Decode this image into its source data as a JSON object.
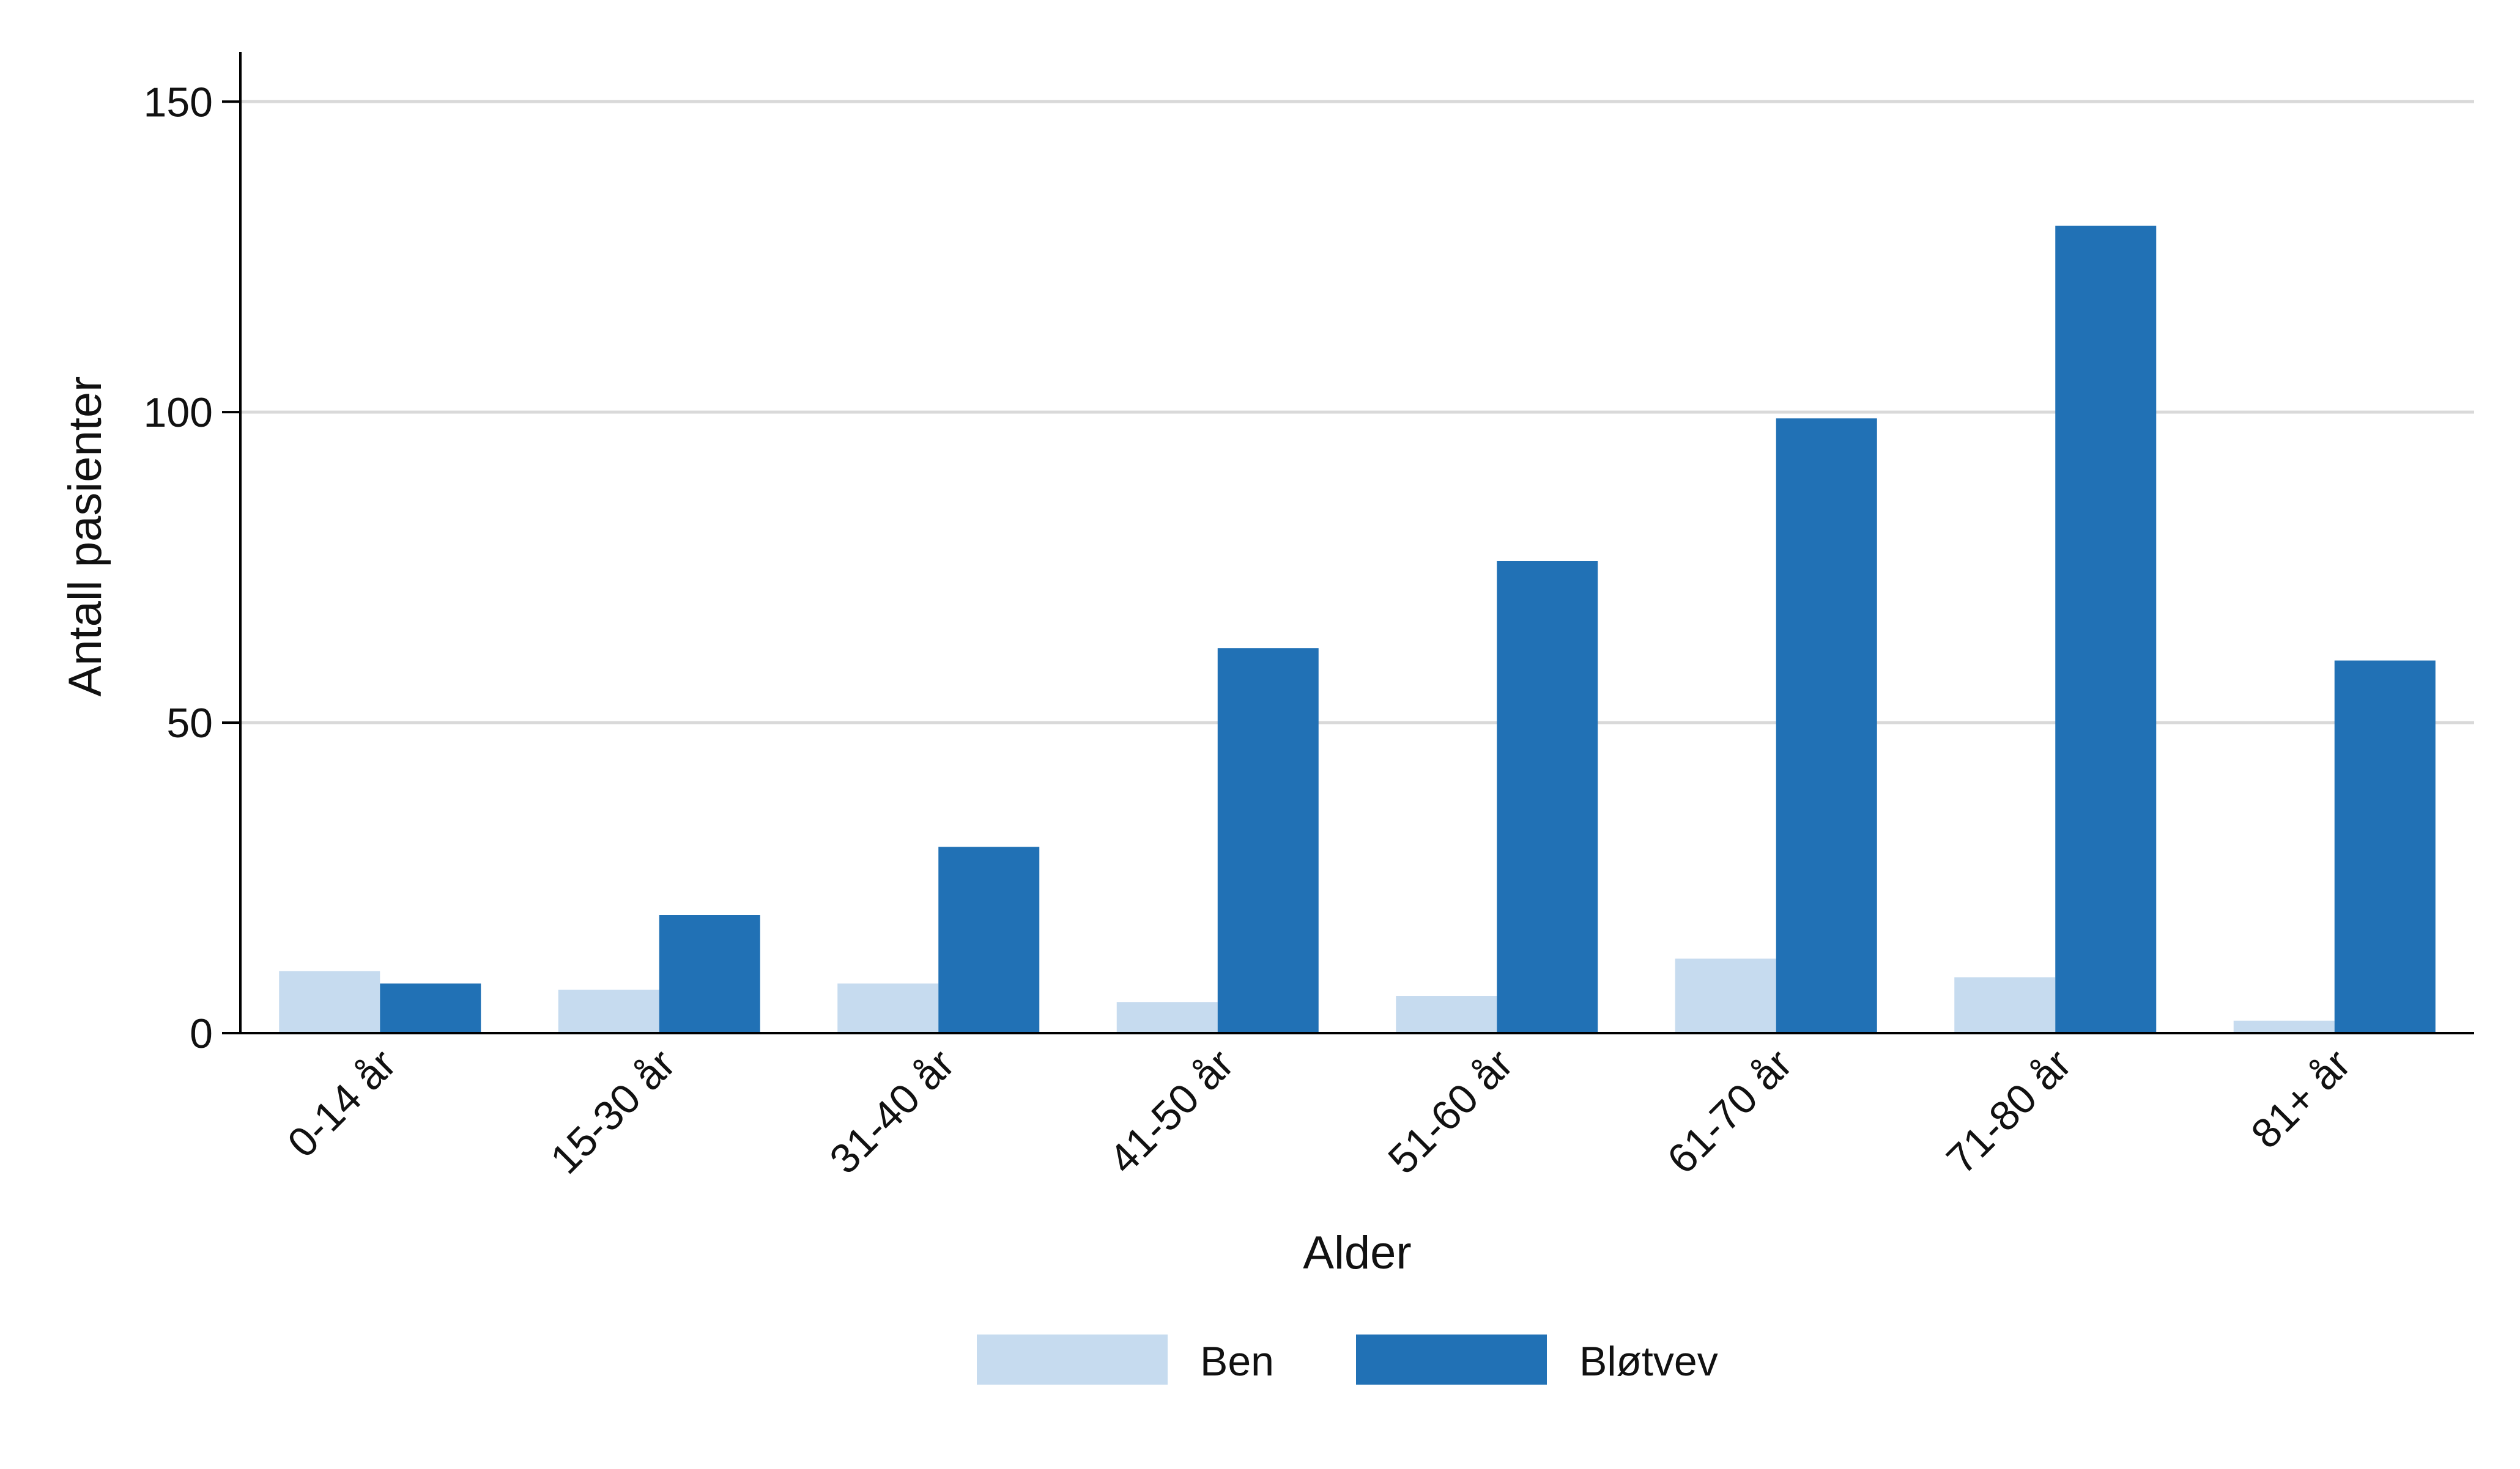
{
  "chart_data": {
    "type": "bar",
    "xlabel": "Alder",
    "ylabel": "Antall pasienter",
    "ylim": [
      0,
      158
    ],
    "yticks": [
      0,
      50,
      100,
      150
    ],
    "grid": true,
    "legend_position": "bottom-center",
    "categories": [
      "0-14 år",
      "15-30 år",
      "31-40 år",
      "41-50 år",
      "51-60 år",
      "61-70 år",
      "71-80 år",
      "81+ år"
    ],
    "series": [
      {
        "name": "Ben",
        "color": "#c6dbef",
        "values": [
          10,
          7,
          8,
          5,
          6,
          12,
          9,
          2
        ]
      },
      {
        "name": "Bløtvev",
        "color": "#2171b5",
        "values": [
          8,
          19,
          30,
          62,
          76,
          99,
          130,
          60
        ]
      }
    ]
  }
}
